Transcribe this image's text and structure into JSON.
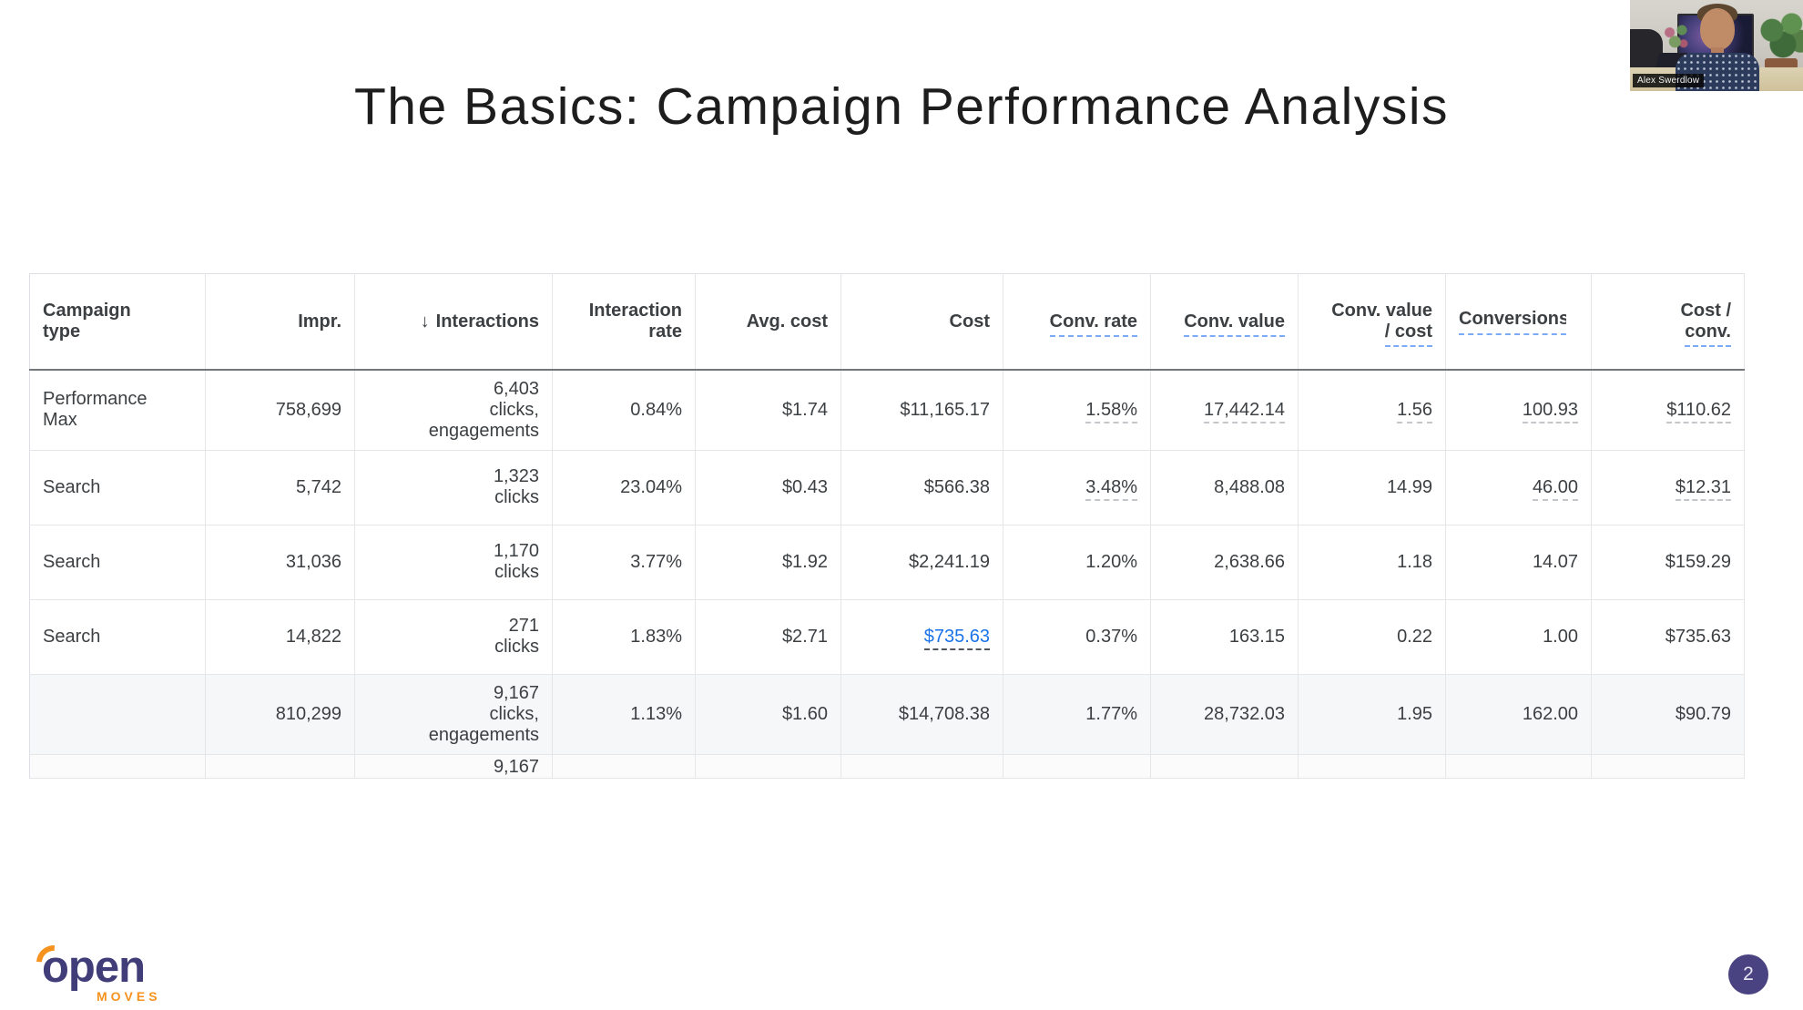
{
  "slide": {
    "title": "The Basics: Campaign Performance Analysis",
    "page_number": "2"
  },
  "webcam": {
    "name_tag": "Alex Swerdlow"
  },
  "logo": {
    "word": "open",
    "sub": "MOVES"
  },
  "colors": {
    "link_blue": "#1a73e8",
    "header_dash_blue": "#7baaf7",
    "value_dash_gray": "#c3c7cb",
    "table_text": "#3c4043",
    "total_row_bg": "#f6f7f8",
    "logo_purple": "#413d79",
    "logo_orange": "#f6921e",
    "page_badge_purple": "#4a4382"
  },
  "table": {
    "headers": [
      {
        "id": "campaign-type",
        "lines": [
          "Campaign",
          "type"
        ],
        "align": "left"
      },
      {
        "id": "impressions",
        "lines": [
          "Impr."
        ],
        "align": "right"
      },
      {
        "id": "interactions",
        "lines": [
          "Interactions"
        ],
        "align": "right",
        "sort_arrow": "↓"
      },
      {
        "id": "interaction-rate",
        "lines": [
          "Interaction",
          "rate"
        ],
        "align": "right"
      },
      {
        "id": "avg-cost",
        "lines": [
          "Avg. cost"
        ],
        "align": "right"
      },
      {
        "id": "cost",
        "lines": [
          "Cost"
        ],
        "align": "right"
      },
      {
        "id": "conv-rate",
        "lines": [
          "Conv. rate"
        ],
        "align": "right",
        "dashed": true
      },
      {
        "id": "conv-value",
        "lines": [
          "Conv. value"
        ],
        "align": "right",
        "dashed": true
      },
      {
        "id": "conv-value-per-cost",
        "lines": [
          "Conv. value",
          "/ cost"
        ],
        "align": "right",
        "dashed": true
      },
      {
        "id": "conversions",
        "lines": [
          "Conversions"
        ],
        "align": "left",
        "dashed": true,
        "truncate": true
      },
      {
        "id": "cost-per-conv",
        "lines": [
          "Cost /",
          "conv."
        ],
        "align": "right",
        "dashed": true
      }
    ],
    "rows": [
      {
        "kind": "data",
        "cells": [
          {
            "lines": [
              "Performance",
              "Max"
            ],
            "align": "left"
          },
          {
            "lines": [
              "758,699"
            ]
          },
          {
            "lines": [
              "6,403",
              "clicks,",
              "engagements"
            ]
          },
          {
            "lines": [
              "0.84%"
            ]
          },
          {
            "lines": [
              "$1.74"
            ]
          },
          {
            "lines": [
              "$11,165.17"
            ]
          },
          {
            "lines": [
              "1.58%"
            ],
            "underline": "gray"
          },
          {
            "lines": [
              "17,442.14"
            ],
            "underline": "gray"
          },
          {
            "lines": [
              "1.56"
            ],
            "underline": "gray"
          },
          {
            "lines": [
              "100.93"
            ],
            "underline": "gray"
          },
          {
            "lines": [
              "$110.62"
            ],
            "underline": "gray"
          }
        ]
      },
      {
        "kind": "data",
        "cells": [
          {
            "lines": [
              "Search"
            ],
            "align": "left"
          },
          {
            "lines": [
              "5,742"
            ]
          },
          {
            "lines": [
              "1,323",
              "clicks"
            ]
          },
          {
            "lines": [
              "23.04%"
            ]
          },
          {
            "lines": [
              "$0.43"
            ]
          },
          {
            "lines": [
              "$566.38"
            ]
          },
          {
            "lines": [
              "3.48%"
            ],
            "underline": "gray"
          },
          {
            "lines": [
              "8,488.08"
            ]
          },
          {
            "lines": [
              "14.99"
            ]
          },
          {
            "lines": [
              "46.00"
            ],
            "underline": "gray"
          },
          {
            "lines": [
              "$12.31"
            ],
            "underline": "gray"
          }
        ]
      },
      {
        "kind": "data",
        "cells": [
          {
            "lines": [
              "Search"
            ],
            "align": "left"
          },
          {
            "lines": [
              "31,036"
            ]
          },
          {
            "lines": [
              "1,170",
              "clicks"
            ]
          },
          {
            "lines": [
              "3.77%"
            ]
          },
          {
            "lines": [
              "$1.92"
            ]
          },
          {
            "lines": [
              "$2,241.19"
            ]
          },
          {
            "lines": [
              "1.20%"
            ]
          },
          {
            "lines": [
              "2,638.66"
            ]
          },
          {
            "lines": [
              "1.18"
            ]
          },
          {
            "lines": [
              "14.07"
            ]
          },
          {
            "lines": [
              "$159.29"
            ]
          }
        ]
      },
      {
        "kind": "data",
        "cells": [
          {
            "lines": [
              "Search"
            ],
            "align": "left"
          },
          {
            "lines": [
              "14,822"
            ]
          },
          {
            "lines": [
              "271",
              "clicks"
            ]
          },
          {
            "lines": [
              "1.83%"
            ]
          },
          {
            "lines": [
              "$2.71"
            ]
          },
          {
            "lines": [
              "$735.63"
            ],
            "underline": "link",
            "link": true
          },
          {
            "lines": [
              "0.37%"
            ]
          },
          {
            "lines": [
              "163.15"
            ]
          },
          {
            "lines": [
              "0.22"
            ]
          },
          {
            "lines": [
              "1.00"
            ]
          },
          {
            "lines": [
              "$735.63"
            ]
          }
        ]
      },
      {
        "kind": "total",
        "cells": [
          {
            "lines": [
              ""
            ],
            "align": "left"
          },
          {
            "lines": [
              "810,299"
            ]
          },
          {
            "lines": [
              "9,167",
              "clicks,",
              "engagements"
            ]
          },
          {
            "lines": [
              "1.13%"
            ]
          },
          {
            "lines": [
              "$1.60"
            ]
          },
          {
            "lines": [
              "$14,708.38"
            ]
          },
          {
            "lines": [
              "1.77%"
            ]
          },
          {
            "lines": [
              "28,732.03"
            ]
          },
          {
            "lines": [
              "1.95"
            ]
          },
          {
            "lines": [
              "162.00"
            ]
          },
          {
            "lines": [
              "$90.79"
            ]
          }
        ]
      },
      {
        "kind": "partial",
        "cells": [
          {
            "lines": [
              ""
            ],
            "align": "left"
          },
          {
            "lines": [
              ""
            ]
          },
          {
            "lines": [
              "9,167"
            ]
          },
          {
            "lines": [
              ""
            ]
          },
          {
            "lines": [
              ""
            ]
          },
          {
            "lines": [
              ""
            ]
          },
          {
            "lines": [
              ""
            ]
          },
          {
            "lines": [
              ""
            ]
          },
          {
            "lines": [
              ""
            ]
          },
          {
            "lines": [
              ""
            ]
          },
          {
            "lines": [
              ""
            ]
          }
        ]
      }
    ]
  }
}
